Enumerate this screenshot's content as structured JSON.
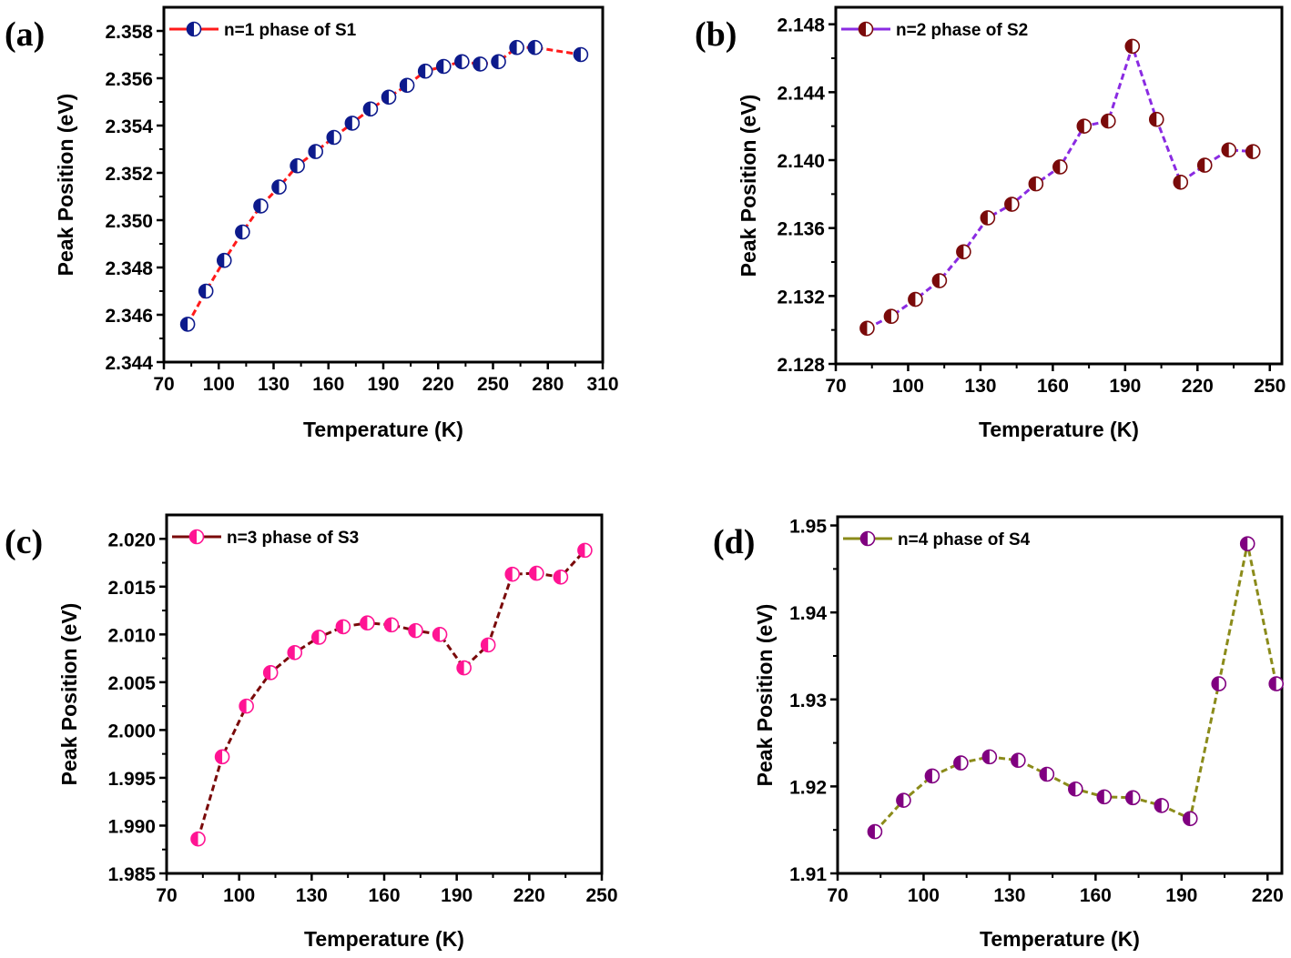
{
  "chart_data": [
    {
      "type": "line",
      "panel_label": "(a)",
      "xlabel": "Temperature (K)",
      "ylabel": "Peak Position (eV)",
      "xlim": [
        70,
        310
      ],
      "ylim": [
        2.344,
        2.359
      ],
      "x_ticks": [
        "70",
        "100",
        "130",
        "160",
        "190",
        "220",
        "250",
        "280",
        "310"
      ],
      "y_ticks": [
        "2.344",
        "2.346",
        "2.348",
        "2.350",
        "2.352",
        "2.354",
        "2.356",
        "2.358"
      ],
      "legend_position": "top-left",
      "line_color": "#ff1a1a",
      "marker_color": "#0d1a8c",
      "series": [
        {
          "name": "n=1 phase of S1",
          "x": [
            83,
            93,
            103,
            113,
            123,
            133,
            143,
            153,
            163,
            173,
            183,
            193,
            203,
            213,
            223,
            233,
            243,
            253,
            263,
            273,
            298
          ],
          "y": [
            2.3456,
            2.347,
            2.3483,
            2.3495,
            2.3506,
            2.3514,
            2.3523,
            2.3529,
            2.3535,
            2.3541,
            2.3547,
            2.3552,
            2.3557,
            2.3563,
            2.3565,
            2.3567,
            2.3566,
            2.3567,
            2.3573,
            2.3573,
            2.357
          ]
        }
      ]
    },
    {
      "type": "line",
      "panel_label": "(b)",
      "xlabel": "Temperature (K)",
      "ylabel": "Peak Position (eV)",
      "xlim": [
        70,
        255
      ],
      "ylim": [
        2.128,
        2.149
      ],
      "x_ticks": [
        "70",
        "100",
        "130",
        "160",
        "190",
        "220",
        "250"
      ],
      "y_ticks": [
        "2.128",
        "2.132",
        "2.136",
        "2.140",
        "2.144",
        "2.148"
      ],
      "legend_position": "top-left",
      "line_color": "#8a2be2",
      "marker_color": "#7a0a0a",
      "series": [
        {
          "name": "n=2 phase of S2",
          "x": [
            83,
            93,
            103,
            113,
            123,
            133,
            143,
            153,
            163,
            173,
            183,
            193,
            203,
            213,
            223,
            233,
            243
          ],
          "y": [
            2.1301,
            2.1308,
            2.1318,
            2.1329,
            2.1346,
            2.1366,
            2.1374,
            2.1386,
            2.1396,
            2.142,
            2.1423,
            2.1467,
            2.1424,
            2.1387,
            2.1397,
            2.1406,
            2.1405
          ]
        }
      ]
    },
    {
      "type": "line",
      "panel_label": "(c)",
      "xlabel": "Temperature (K)",
      "ylabel": "Peak Position (eV)",
      "xlim": [
        70,
        250
      ],
      "ylim": [
        1.985,
        2.0225
      ],
      "x_ticks": [
        "70",
        "100",
        "130",
        "160",
        "190",
        "220",
        "250"
      ],
      "y_ticks": [
        "1.985",
        "1.990",
        "1.995",
        "2.000",
        "2.005",
        "2.010",
        "2.015",
        "2.020"
      ],
      "legend_position": "top-left",
      "line_color": "#7a0a0a",
      "marker_color": "#ff1493",
      "series": [
        {
          "name": "n=3 phase of S3",
          "x": [
            83,
            93,
            103,
            113,
            123,
            133,
            143,
            153,
            163,
            173,
            183,
            193,
            203,
            213,
            223,
            233,
            243
          ],
          "y": [
            1.9886,
            1.9972,
            2.0025,
            2.006,
            2.0081,
            2.0097,
            2.0108,
            2.0112,
            2.011,
            2.0104,
            2.01,
            2.0065,
            2.0089,
            2.0163,
            2.0164,
            2.016,
            2.0188
          ]
        }
      ]
    },
    {
      "type": "line",
      "panel_label": "(d)",
      "xlabel": "Temperature (K)",
      "ylabel": "Peak Position (eV)",
      "xlim": [
        70,
        225
      ],
      "ylim": [
        1.91,
        1.951
      ],
      "x_ticks": [
        "70",
        "100",
        "130",
        "160",
        "190",
        "220"
      ],
      "y_ticks": [
        "1.91",
        "1.92",
        "1.93",
        "1.94",
        "1.95"
      ],
      "legend_position": "top-left",
      "line_color": "#8b8b1a",
      "marker_color": "#800080",
      "series": [
        {
          "name": "n=4 phase of S4",
          "x": [
            83,
            93,
            103,
            113,
            123,
            133,
            143,
            153,
            163,
            173,
            183,
            193,
            203,
            213,
            223
          ],
          "y": [
            1.9148,
            1.9184,
            1.9212,
            1.9227,
            1.9234,
            1.923,
            1.9214,
            1.9197,
            1.9188,
            1.9187,
            1.9178,
            1.9163,
            1.9318,
            1.9479,
            1.9318
          ]
        }
      ]
    }
  ]
}
